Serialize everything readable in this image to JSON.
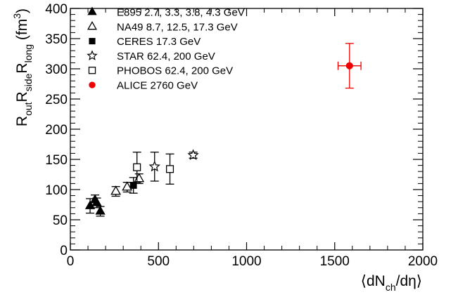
{
  "chart_data": {
    "type": "scatter",
    "xlim": [
      0,
      2000
    ],
    "ylim": [
      0,
      400
    ],
    "x_ticks": [
      0,
      500,
      1000,
      1500,
      2000
    ],
    "y_ticks": [
      0,
      50,
      100,
      150,
      200,
      250,
      300,
      350,
      400
    ],
    "xlabel": "⟨dNch/dη⟩",
    "ylabel": "RoutRsideRlong (fm3)",
    "legend_position": "top-left",
    "series": [
      {
        "name": "E895 2.7, 3.3, 3.8, 4.3 GeV",
        "marker": "filled-triangle",
        "color": "#000000",
        "points": [
          {
            "x": 112,
            "y": 73,
            "err": 12
          },
          {
            "x": 140,
            "y": 83,
            "err": 8
          },
          {
            "x": 150,
            "y": 78,
            "err": 8
          },
          {
            "x": 170,
            "y": 64,
            "err": 8
          }
        ]
      },
      {
        "name": "NA49 8.7, 12.5, 17.3 GeV",
        "marker": "open-triangle",
        "color": "#000000",
        "points": [
          {
            "x": 258,
            "y": 97,
            "err": 8
          },
          {
            "x": 322,
            "y": 104,
            "err": 8
          },
          {
            "x": 390,
            "y": 118,
            "err": 8
          }
        ]
      },
      {
        "name": "CERES 17.3 GeV",
        "marker": "filled-square",
        "color": "#000000",
        "points": [
          {
            "x": 358,
            "y": 107,
            "err": 13
          }
        ]
      },
      {
        "name": "STAR 62.4, 200 GeV",
        "marker": "open-star",
        "color": "#000000",
        "points": [
          {
            "x": 478,
            "y": 138,
            "err": 24
          },
          {
            "x": 697,
            "y": 157,
            "err": 5
          }
        ]
      },
      {
        "name": "PHOBOS 62.4, 200 GeV",
        "marker": "open-square",
        "color": "#000000",
        "points": [
          {
            "x": 378,
            "y": 137,
            "err": 25
          },
          {
            "x": 565,
            "y": 134,
            "err": 25
          }
        ]
      },
      {
        "name": "ALICE 2760 GeV",
        "marker": "filled-circle",
        "color": "#ee0000",
        "points": [
          {
            "x": 1584,
            "y": 305,
            "err": 37,
            "xerr": 65
          }
        ]
      }
    ]
  }
}
